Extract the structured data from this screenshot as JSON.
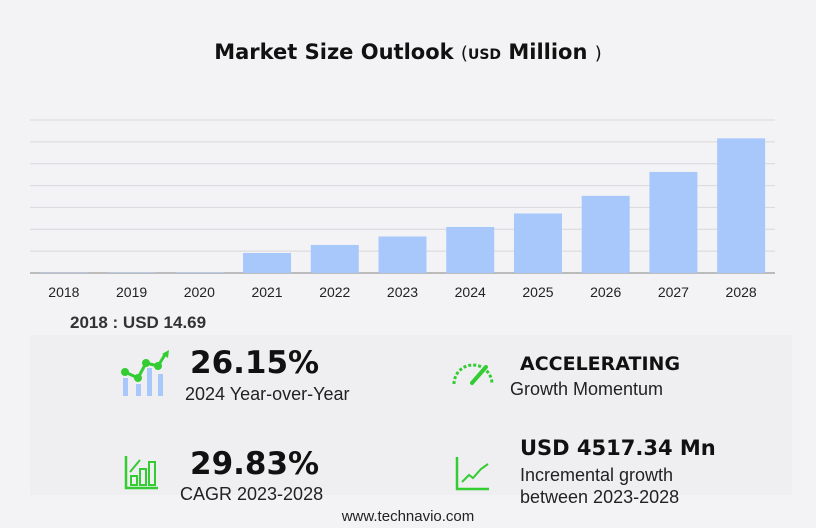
{
  "title": {
    "main": "Market Size Outlook",
    "open": "(",
    "unit": "USD",
    "unit_word": "Million",
    "close": ")"
  },
  "chart_data": {
    "type": "bar",
    "categories": [
      "2018",
      "2019",
      "2020",
      "2021",
      "2022",
      "2023",
      "2024",
      "2025",
      "2026",
      "2027",
      "2028"
    ],
    "values": [
      14.69,
      20,
      25,
      920,
      1290,
      1679,
      2118,
      2740,
      3550,
      4650,
      6196
    ],
    "ylim": [
      0,
      7040
    ],
    "grid": true,
    "bar_color": "#a8c8fc",
    "xlabel": "",
    "ylabel": ""
  },
  "base_year": "2018 : USD  14.69",
  "stats": {
    "yoy": {
      "value": "26.15%",
      "label": "2024 Year-over-Year"
    },
    "momentum": {
      "value": "ACCELERATING",
      "label": "Growth Momentum"
    },
    "cagr": {
      "value": "29.83%",
      "label": "CAGR 2023-2028"
    },
    "incremental": {
      "value": "USD 4517.34 Mn",
      "label1": "Incremental growth",
      "label2": "between 2023-2028"
    }
  },
  "icon_color": "#33cc33",
  "footer": "www.technavio.com"
}
